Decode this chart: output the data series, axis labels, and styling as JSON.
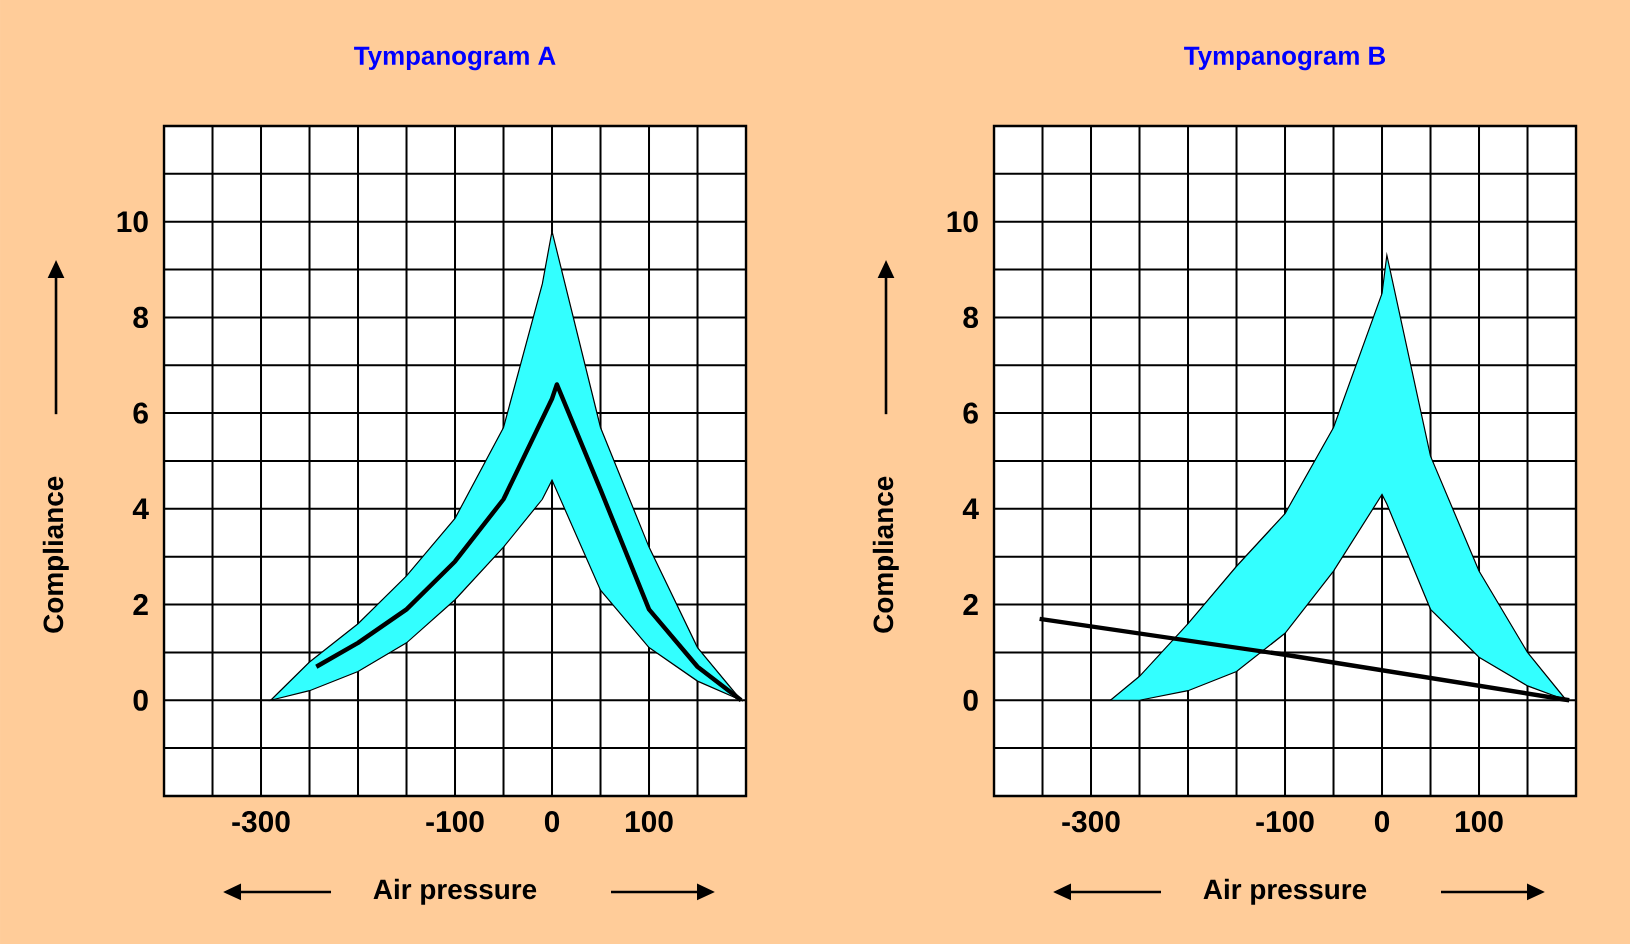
{
  "chart_data": [
    {
      "type": "line",
      "title": "Tympanogram A",
      "xlabel": "Air pressure",
      "ylabel": "Compliance",
      "xlim": [
        -400,
        200
      ],
      "ylim": [
        -2,
        12
      ],
      "xticks": [
        {
          "value": -400,
          "label": null
        },
        {
          "value": -350,
          "label": null
        },
        -300,
        {
          "value": -250,
          "label": null
        },
        {
          "value": -200,
          "label": null
        },
        {
          "value": -150,
          "label": null
        },
        -100,
        {
          "value": -50,
          "label": null
        },
        0,
        {
          "value": 50,
          "label": null
        },
        100,
        {
          "value": 150,
          "label": null
        },
        {
          "value": 200,
          "label": null
        }
      ],
      "yticks": [
        {
          "value": -2,
          "label": null
        },
        {
          "value": -1,
          "label": null
        },
        0,
        {
          "value": 1,
          "label": null
        },
        2,
        {
          "value": 3,
          "label": null
        },
        4,
        {
          "value": 5,
          "label": null
        },
        6,
        {
          "value": 7,
          "label": null
        },
        8,
        {
          "value": 9,
          "label": null
        },
        10,
        {
          "value": 11,
          "label": null
        },
        {
          "value": 12,
          "label": null
        }
      ],
      "grid": true,
      "series": [
        {
          "type": "area",
          "color": "#33ffff",
          "x": [
            -290,
            -250,
            -200,
            -150,
            -100,
            -50,
            -10,
            0,
            50,
            100,
            150,
            195
          ],
          "values": [
            null,
            null,
            null,
            null,
            null,
            null,
            null,
            null,
            null,
            null,
            null,
            null
          ],
          "upper": [
            0,
            0.8,
            1.6,
            2.6,
            3.8,
            5.7,
            8.7,
            9.8,
            5.7,
            3.2,
            1.1,
            0
          ],
          "lower": [
            0,
            0.2,
            0.6,
            1.2,
            2.1,
            3.2,
            4.2,
            4.6,
            2.3,
            1.1,
            0.4,
            0
          ]
        },
        {
          "color": "#000000",
          "x": [
            -243,
            -200,
            -150,
            -100,
            -50,
            0,
            5,
            50,
            100,
            150,
            195
          ],
          "values": [
            0.7,
            1.2,
            1.9,
            2.9,
            4.2,
            6.3,
            6.6,
            4.4,
            1.9,
            0.7,
            0
          ]
        }
      ]
    },
    {
      "type": "line",
      "title": "Tympanogram B",
      "xlabel": "Air pressure",
      "ylabel": "Compliance",
      "xlim": [
        -400,
        200
      ],
      "ylim": [
        -2,
        12
      ],
      "xticks": [
        {
          "value": -400,
          "label": null
        },
        {
          "value": -350,
          "label": null
        },
        -300,
        {
          "value": -250,
          "label": null
        },
        {
          "value": -200,
          "label": null
        },
        {
          "value": -150,
          "label": null
        },
        -100,
        {
          "value": -50,
          "label": null
        },
        0,
        {
          "value": 50,
          "label": null
        },
        100,
        {
          "value": 150,
          "label": null
        },
        {
          "value": 200,
          "label": null
        }
      ],
      "yticks": [
        {
          "value": -2,
          "label": null
        },
        {
          "value": -1,
          "label": null
        },
        0,
        {
          "value": 1,
          "label": null
        },
        2,
        {
          "value": 3,
          "label": null
        },
        4,
        {
          "value": 5,
          "label": null
        },
        6,
        {
          "value": 7,
          "label": null
        },
        8,
        {
          "value": 9,
          "label": null
        },
        10,
        {
          "value": 11,
          "label": null
        },
        {
          "value": 12,
          "label": null
        }
      ],
      "grid": true,
      "series": [
        {
          "type": "area",
          "color": "#33ffff",
          "x": [
            -280,
            -250,
            -200,
            -150,
            -100,
            -50,
            0,
            5,
            50,
            100,
            150,
            190
          ],
          "values": [
            null,
            null,
            null,
            null,
            null,
            null,
            null,
            null,
            null,
            null,
            null,
            null
          ],
          "upper": [
            0,
            0.5,
            1.6,
            2.8,
            3.9,
            5.7,
            8.5,
            9.3,
            5.1,
            2.7,
            1.0,
            0
          ],
          "lower": [
            0,
            0,
            0.2,
            0.6,
            1.4,
            2.7,
            4.3,
            4.1,
            1.9,
            0.9,
            0.3,
            0
          ]
        },
        {
          "color": "#000000",
          "x": [
            -353,
            -100,
            193
          ],
          "values": [
            1.7,
            0.95,
            0
          ]
        }
      ]
    }
  ]
}
